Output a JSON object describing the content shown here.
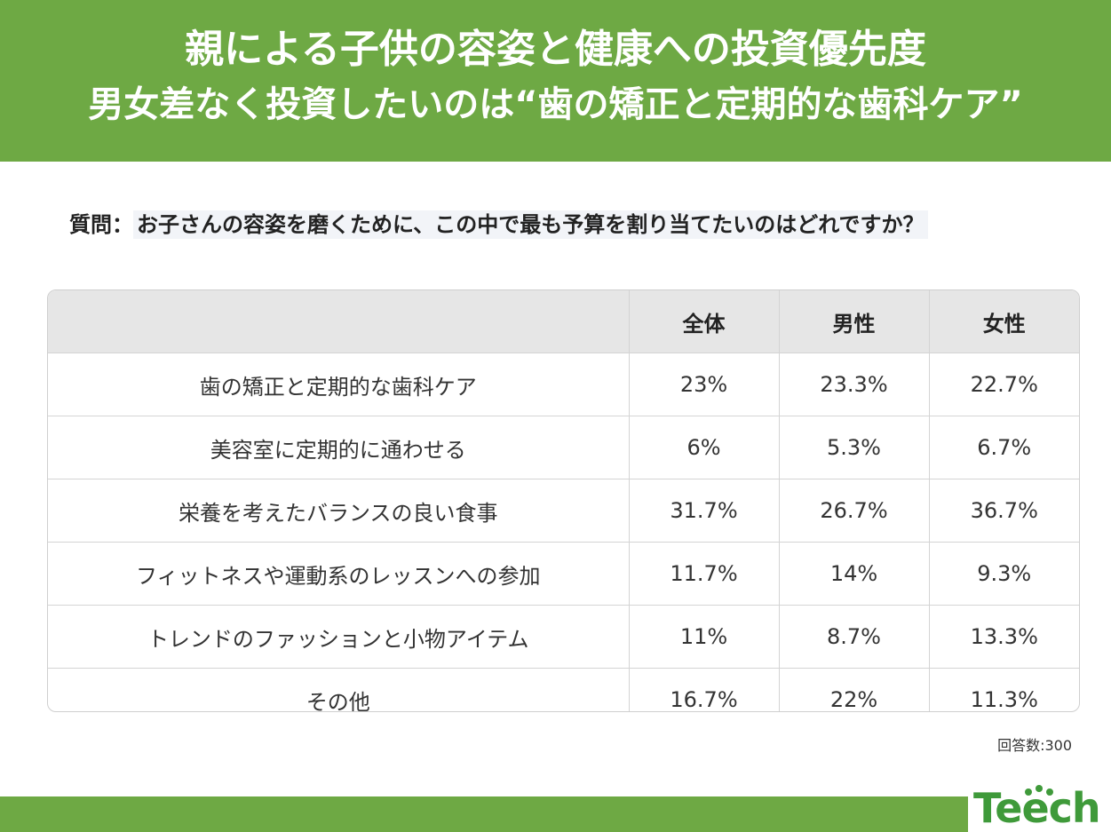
{
  "header": {
    "title_line1": "親による子供の容姿と健康への投資優先度",
    "title_line2": "男女差なく投資したいのは“歯の矯正と定期的な歯科ケア”"
  },
  "question": {
    "label": "質問：",
    "text": "お子さんの容姿を磨くために、この中で最も予算を割り当てたいのはどれですか？"
  },
  "chart_data": {
    "type": "table",
    "columns": [
      "",
      "全体",
      "男性",
      "女性"
    ],
    "rows": [
      {
        "label": "歯の矯正と定期的な歯科ケア",
        "all": "23%",
        "male": "23.3%",
        "female": "22.7%"
      },
      {
        "label": "美容室に定期的に通わせる",
        "all": "6%",
        "male": "5.3%",
        "female": "6.7%"
      },
      {
        "label": "栄養を考えたバランスの良い食事",
        "all": "31.7%",
        "male": "26.7%",
        "female": "36.7%"
      },
      {
        "label": "フィットネスや運動系のレッスンへの参加",
        "all": "11.7%",
        "male": "14%",
        "female": "9.3%"
      },
      {
        "label": "トレンドのファッションと小物アイテム",
        "all": "11%",
        "male": "8.7%",
        "female": "13.3%"
      },
      {
        "label": "その他",
        "all": "16.7%",
        "male": "22%",
        "female": "11.3%"
      }
    ]
  },
  "footnote": "回答数:300",
  "logo": {
    "text": "Teech",
    "color": "#3f9a3a"
  },
  "colors": {
    "brand_green": "#6ea944",
    "header_row_bg": "#e6e6e6"
  }
}
